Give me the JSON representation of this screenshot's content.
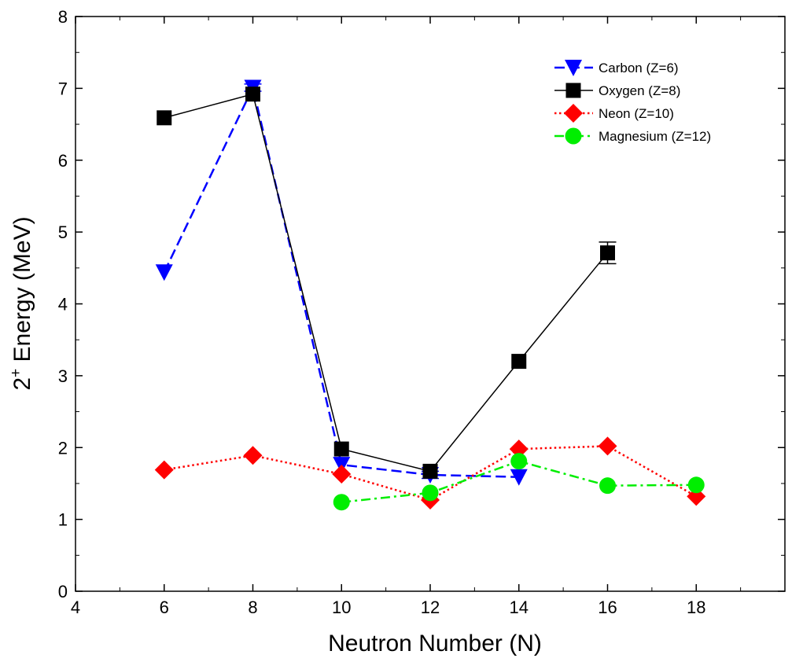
{
  "chart_data": {
    "type": "line",
    "title": "",
    "xlabel": "Neutron Number (N)",
    "ylabel_main": "2",
    "ylabel_sup": "+",
    "ylabel_rest": " Energy (MeV)",
    "xlim": [
      4,
      20
    ],
    "ylim": [
      0,
      8
    ],
    "xticks": [
      4,
      6,
      8,
      10,
      12,
      14,
      16,
      18
    ],
    "yticks": [
      0,
      1,
      2,
      3,
      4,
      5,
      6,
      7,
      8
    ],
    "legend_position": "top-right",
    "series": [
      {
        "name": "Carbon (Z=6)",
        "color": "#0000ff",
        "marker": "triangle-down",
        "line": "dashed",
        "x": [
          6,
          8,
          10,
          12,
          14
        ],
        "y": [
          4.44,
          7.01,
          1.76,
          1.62,
          1.59
        ],
        "err": [
          0,
          0.05,
          0,
          0.05,
          0
        ]
      },
      {
        "name": "Oxygen (Z=8)",
        "color": "#000000",
        "marker": "square",
        "line": "solid",
        "x": [
          6,
          8,
          10,
          12,
          14,
          16
        ],
        "y": [
          6.59,
          6.92,
          1.98,
          1.67,
          3.2,
          4.71
        ],
        "err": [
          0,
          0,
          0,
          0,
          0,
          0.15
        ]
      },
      {
        "name": "Neon (Z=10)",
        "color": "#ff0000",
        "marker": "diamond",
        "line": "dotted",
        "x": [
          6,
          8,
          10,
          12,
          14,
          16,
          18
        ],
        "y": [
          1.69,
          1.89,
          1.63,
          1.27,
          1.98,
          2.02,
          1.32
        ],
        "err": [
          0,
          0,
          0,
          0,
          0,
          0,
          0
        ]
      },
      {
        "name": "Magnesium (Z=12)",
        "color": "#00ee00",
        "marker": "circle",
        "line": "dashdot",
        "x": [
          10,
          12,
          14,
          16,
          18
        ],
        "y": [
          1.24,
          1.37,
          1.81,
          1.47,
          1.48
        ],
        "err": [
          0,
          0,
          0,
          0,
          0
        ]
      }
    ]
  }
}
